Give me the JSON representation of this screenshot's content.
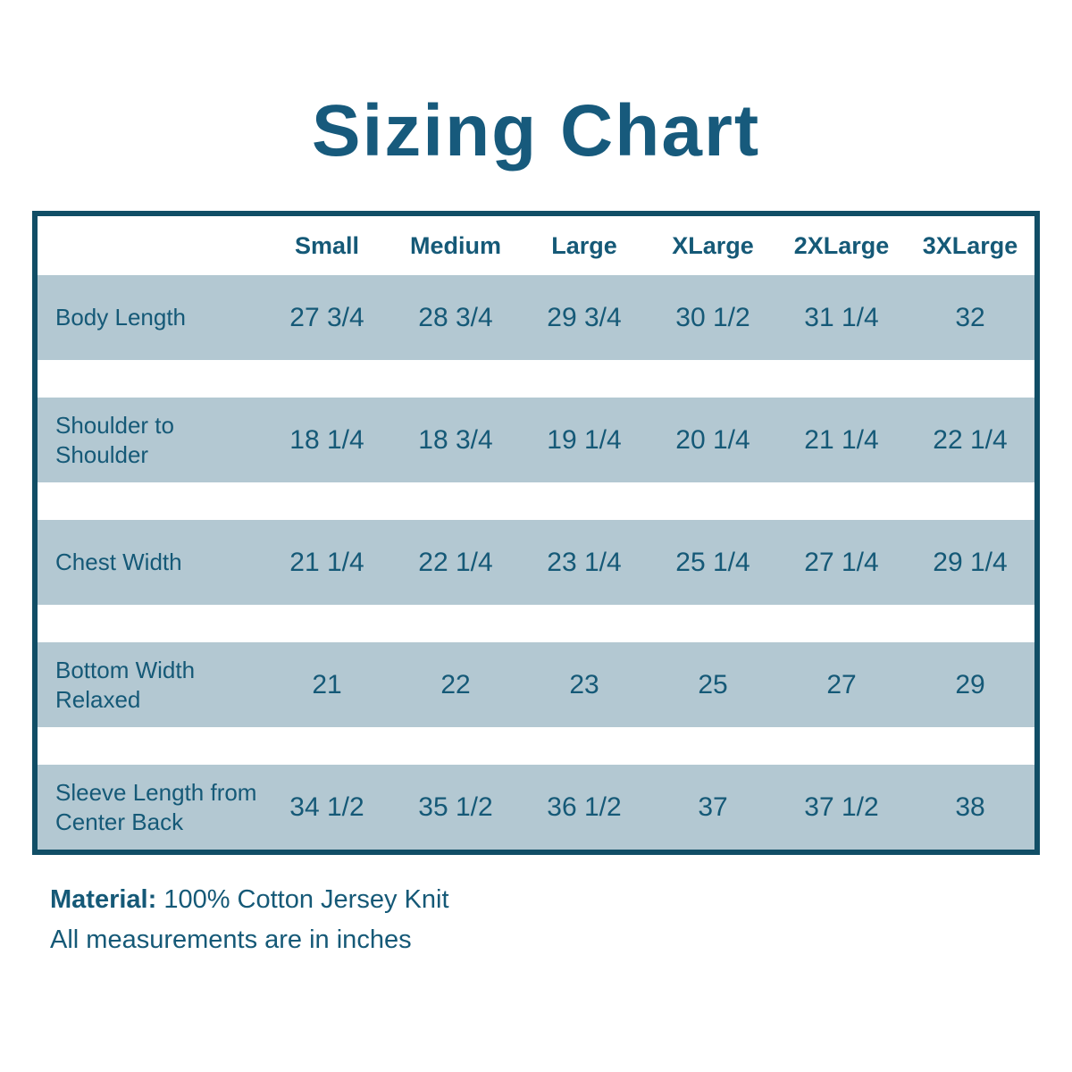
{
  "title": "Sizing Chart",
  "chart_data": {
    "type": "table",
    "title": "Sizing Chart",
    "columns": [
      "Small",
      "Medium",
      "Large",
      "XLarge",
      "2XLarge",
      "3XLarge"
    ],
    "rows": [
      {
        "label": "Body Length",
        "values": [
          "27 3/4",
          "28 3/4",
          "29 3/4",
          "30 1/2",
          "31 1/4",
          "32"
        ]
      },
      {
        "label": "Shoulder to Shoulder",
        "values": [
          "18 1/4",
          "18 3/4",
          "19 1/4",
          "20 1/4",
          "21 1/4",
          "22 1/4"
        ]
      },
      {
        "label": "Chest Width",
        "values": [
          "21 1/4",
          "22 1/4",
          "23 1/4",
          "25 1/4",
          "27 1/4",
          "29 1/4"
        ]
      },
      {
        "label": "Bottom Width Relaxed",
        "values": [
          "21",
          "22",
          "23",
          "25",
          "27",
          "29"
        ]
      },
      {
        "label": "Sleeve Length from Center Back",
        "values": [
          "34 1/2",
          "35 1/2",
          "36 1/2",
          "37",
          "37 1/2",
          "38"
        ]
      }
    ],
    "units_note": "All measurements are in inches"
  },
  "footer": {
    "material_label": "Material:",
    "material_value": "100% Cotton Jersey Knit",
    "note": "All measurements are in inches"
  },
  "colors": {
    "text_teal": "#155977",
    "border_teal": "#114e66",
    "row_background": "#b3c8d2",
    "page_background": "#ffffff"
  }
}
